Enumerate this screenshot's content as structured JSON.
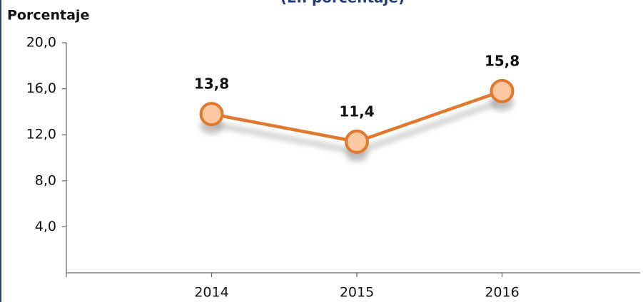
{
  "chart_data": {
    "type": "line",
    "title": "(En porcentaje)",
    "y_label": "Porcentaje",
    "categories": [
      "2014",
      "2015",
      "2016"
    ],
    "values": [
      13.8,
      11.4,
      15.8
    ],
    "value_labels": [
      "13,8",
      "11,4",
      "15,8"
    ],
    "color": "#e0782f",
    "marker_fill": "#fbc8a0",
    "ylim": [
      0,
      20
    ],
    "yticks": [
      {
        "value": 4,
        "label": "4,0"
      },
      {
        "value": 8,
        "label": "8,0"
      },
      {
        "value": 12,
        "label": "12,0"
      },
      {
        "value": 16,
        "label": "16,0"
      },
      {
        "value": 20,
        "label": "20,0"
      }
    ],
    "grid": false
  }
}
